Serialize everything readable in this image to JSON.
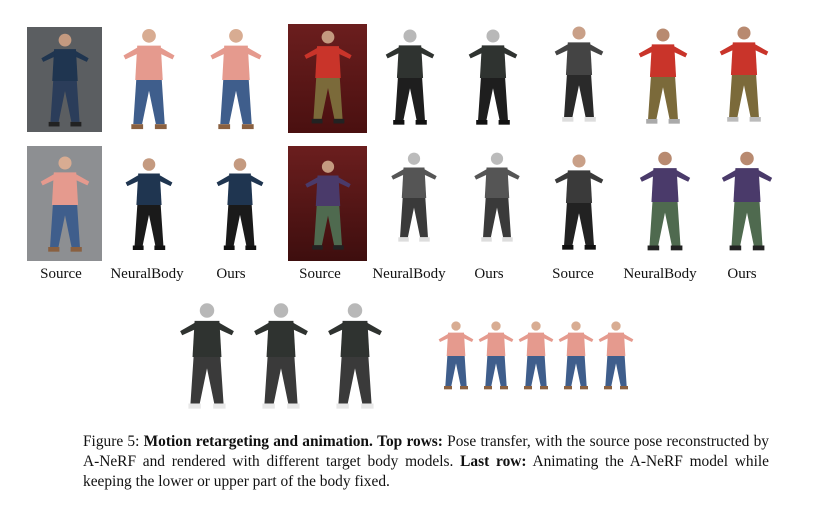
{
  "column_labels": [
    "Source",
    "NeuralBody",
    "Ours",
    "Source",
    "NeuralBody",
    "Ours",
    "Source",
    "NeuralBody",
    "Ours"
  ],
  "caption": {
    "figure_label": "Figure 5:",
    "title": "Motion retargeting and animation.",
    "part1_label": "Top rows:",
    "part1_text": "Pose transfer, with the source pose reconstructed by A-NeRF and rendered with different target body models.",
    "part2_label": "Last row:",
    "part2_text": "Animating the A-NeRF model while keeping the lower or upper part of the body fixed."
  },
  "colors": {
    "pink_sweater": "#e59a8e",
    "jeans": "#3f5e8c",
    "striped": "#1f3550",
    "red_shirt": "#c9342a",
    "dark_suit": "#2a2a2a",
    "purple_shirt": "#4a3a6a",
    "red_room": "#7a1a1a",
    "pavement": "#8d8f92"
  }
}
